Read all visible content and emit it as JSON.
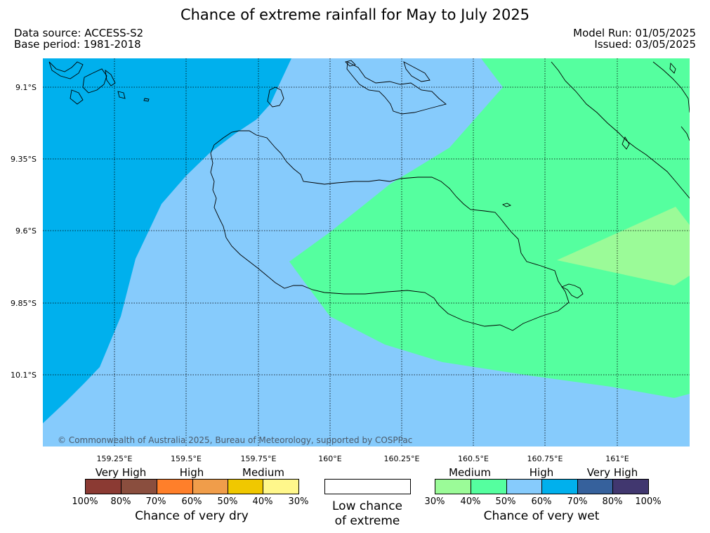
{
  "header": {
    "title": "Chance of extreme rainfall for May to July 2025",
    "data_source": "Data source: ACCESS-S2",
    "base_period": "Base period: 1981-2018",
    "model_run": "Model Run: 01/05/2025",
    "issued": "Issued: 03/05/2025"
  },
  "map": {
    "lat_labels": [
      "9.1°S",
      "9.35°S",
      "9.6°S",
      "9.85°S",
      "10.1°S"
    ],
    "lon_labels": [
      "159.25°E",
      "159.5°E",
      "159.75°E",
      "160°E",
      "160.25°E",
      "160.5°E",
      "160.75°E",
      "161°E"
    ],
    "copyright": "© Commonwealth of Australia 2025, Bureau of Meteorology, supported by COSPPac",
    "regions": [
      {
        "category": "wet 60-70%",
        "color": "#00b0ed"
      },
      {
        "category": "wet 50-60%",
        "color": "#86cbfc"
      },
      {
        "category": "wet 40-50%",
        "color": "#55ff9f"
      },
      {
        "category": "wet 30-40%",
        "color": "#9bfb98"
      }
    ]
  },
  "legend": {
    "dry": {
      "category_labels": [
        "Very High",
        "High",
        "Medium"
      ],
      "colors": [
        "#8b3a33",
        "#8a4e3e",
        "#ff7f2a",
        "#f09d4a",
        "#f0c800",
        "#fff78b"
      ],
      "ticks": [
        "100%",
        "80%",
        "70%",
        "60%",
        "50%",
        "40%",
        "30%"
      ],
      "caption": "Chance of very dry"
    },
    "neutral": {
      "caption_line1": "Low chance",
      "caption_line2": "of extreme"
    },
    "wet": {
      "category_labels": [
        "Medium",
        "High",
        "Very High"
      ],
      "colors": [
        "#9bfb98",
        "#55ff9f",
        "#86cbfc",
        "#00b0ed",
        "#36619c",
        "#41376f"
      ],
      "ticks": [
        "30%",
        "40%",
        "50%",
        "60%",
        "70%",
        "80%",
        "100%"
      ],
      "caption": "Chance of very wet"
    }
  }
}
